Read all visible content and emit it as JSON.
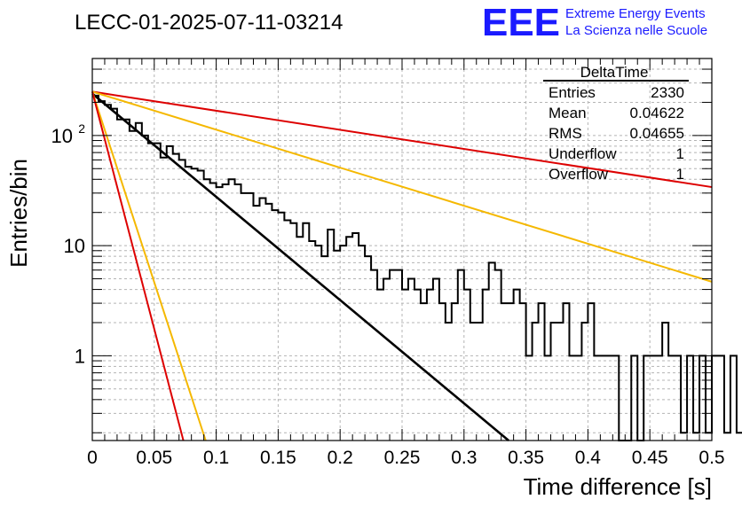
{
  "title": "LECC-01-2025-07-11-03214",
  "logo": {
    "letters": "EEE",
    "line1": "Extreme Energy Events",
    "line2": "La Scienza nelle Scuole",
    "color": "#1a1aff"
  },
  "stats": {
    "name": "DeltaTime",
    "rows": [
      {
        "label": "Entries",
        "value": "2330"
      },
      {
        "label": "Mean",
        "value": "0.04622"
      },
      {
        "label": "RMS",
        "value": "0.04655"
      },
      {
        "label": "Underflow",
        "value": "1"
      },
      {
        "label": "Overflow",
        "value": "1"
      }
    ]
  },
  "chart_data": {
    "type": "histogram",
    "title": "LECC-01-2025-07-11-03214",
    "xlabel": "Time difference [s]",
    "ylabel": "Entries/bin",
    "xlim": [
      0,
      0.5
    ],
    "ylim": [
      0.17,
      500
    ],
    "y_scale": "log",
    "grid": true,
    "x_ticks": [
      "0",
      "0.05",
      "0.1",
      "0.15",
      "0.2",
      "0.25",
      "0.3",
      "0.35",
      "0.4",
      "0.45",
      "0.5"
    ],
    "y_ticks": [
      {
        "value": 1,
        "label": "1"
      },
      {
        "value": 10,
        "label": "10"
      },
      {
        "value": 100,
        "label": "10",
        "sup": "2"
      }
    ],
    "bin_width": 0.005,
    "histogram": [
      230,
      205,
      190,
      175,
      140,
      140,
      110,
      130,
      100,
      85,
      85,
      63,
      80,
      68,
      60,
      52,
      50,
      48,
      40,
      37,
      34,
      36,
      40,
      36,
      30,
      30,
      23,
      27,
      24,
      21,
      20,
      17,
      16,
      12,
      16,
      11,
      10,
      8,
      14,
      9,
      10,
      12,
      13,
      10,
      8,
      6,
      4,
      5,
      6,
      6,
      4,
      5,
      4,
      3,
      4,
      5,
      3,
      2,
      3,
      6,
      4,
      2,
      2,
      4,
      7,
      6,
      3,
      3,
      4,
      3,
      1,
      2,
      3,
      1,
      2,
      2,
      3,
      1,
      1,
      2,
      3,
      1,
      1,
      1,
      1,
      0,
      0,
      1,
      0,
      1,
      1,
      1,
      2,
      1,
      1,
      0.2,
      1,
      0.2,
      1,
      0.2,
      1,
      1,
      0.2,
      1,
      0.2,
      0.2,
      0.2,
      0.2,
      1,
      0.2,
      0.2
    ],
    "series": [
      {
        "color": "#000000",
        "points": [
          [
            0,
            240
          ],
          [
            0.336,
            0.17
          ]
        ]
      },
      {
        "color": "#dd0000",
        "points": [
          [
            0,
            250
          ],
          [
            0.5,
            34
          ]
        ]
      },
      {
        "color": "#f5b800",
        "points": [
          [
            0,
            250
          ],
          [
            0.5,
            4.7
          ]
        ]
      },
      {
        "color": "#f5b800",
        "points": [
          [
            0,
            250
          ],
          [
            0.0915,
            0.17
          ]
        ]
      },
      {
        "color": "#dd0000",
        "points": [
          [
            0,
            250
          ],
          [
            0.0735,
            0.17
          ]
        ]
      }
    ]
  }
}
